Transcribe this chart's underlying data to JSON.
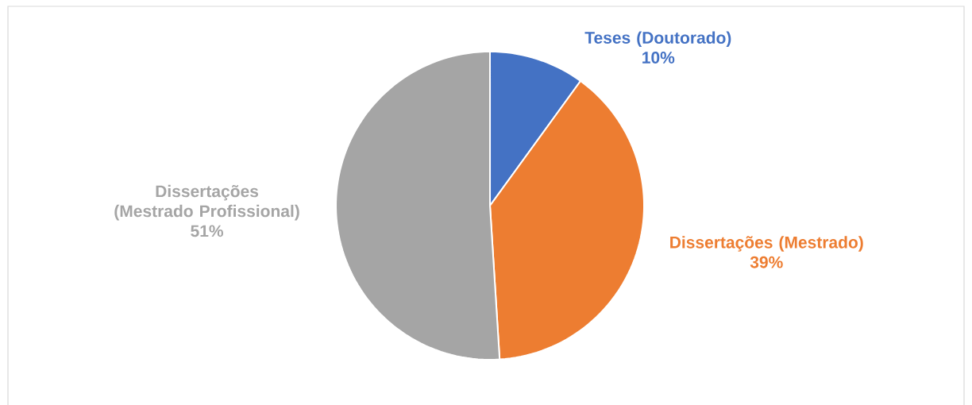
{
  "chart_data": {
    "type": "pie",
    "categories": [
      "Teses (Doutorado)",
      "Dissertações (Mestrado)",
      "Dissertações (Mestrado Profissional)"
    ],
    "values": [
      10,
      39,
      51
    ],
    "colors": [
      "#4472c4",
      "#ed7d31",
      "#a5a5a5"
    ],
    "value_labels": [
      "10%",
      "39%",
      "51%"
    ]
  }
}
